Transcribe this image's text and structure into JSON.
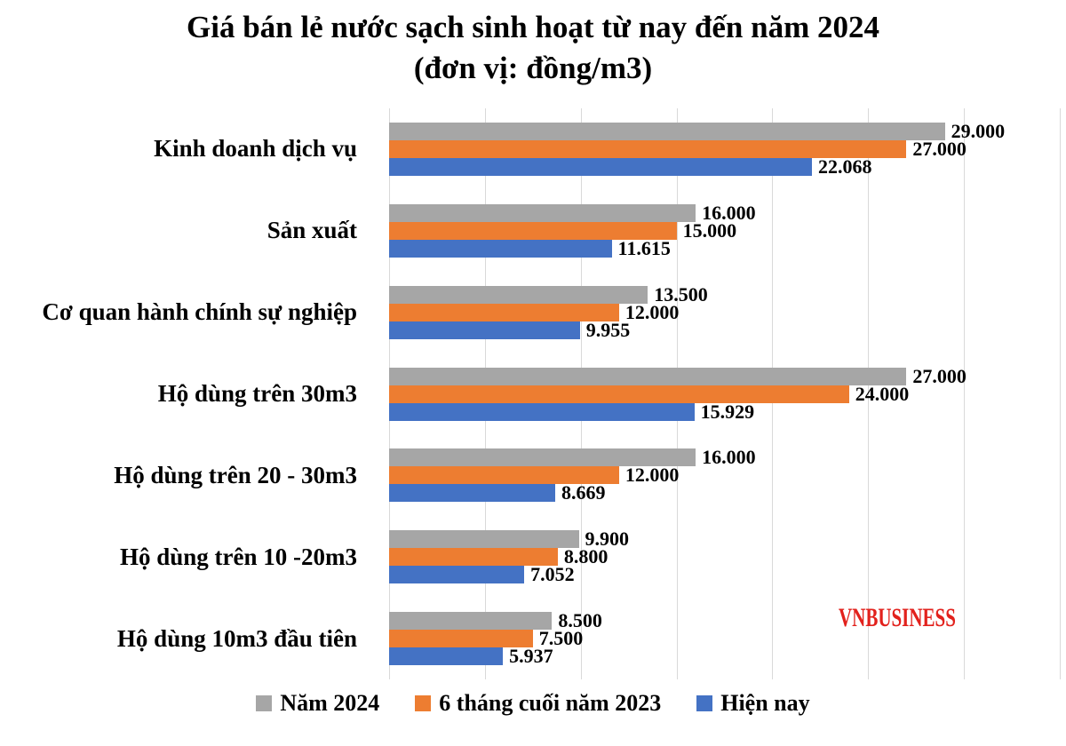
{
  "title": {
    "line1": "Giá bán lẻ nước sạch sinh hoạt từ nay đến năm 2024",
    "line2": "(đơn vị: đồng/m3)"
  },
  "watermark": "VNBUSINESS",
  "colors": {
    "series_nam_2024": "#A6A6A6",
    "series_6_thang_cuoi_2023": "#ED7D31",
    "series_hien_nay": "#4472C4",
    "gridline": "#D9D9D9",
    "value_label": "#000000",
    "watermark": "#E2211C",
    "background": "#FFFFFF"
  },
  "chart_data": {
    "type": "bar",
    "orientation": "horizontal",
    "title": "Giá bán lẻ nước sạch sinh hoạt từ nay đến năm 2024 (đơn vị: đồng/m3)",
    "categories": [
      "Kinh doanh dịch vụ",
      "Sản xuất",
      "Cơ quan hành chính sự nghiệp",
      "Hộ dùng trên 30m3",
      "Hộ dùng trên 20 - 30m3",
      "Hộ dùng trên 10 -20m3",
      "Hộ dùng 10m3 đầu tiên"
    ],
    "series": [
      {
        "name": "Năm 2024",
        "color": "#A6A6A6",
        "values": [
          29000,
          16000,
          13500,
          27000,
          16000,
          9900,
          8500
        ],
        "labels": [
          "29.000",
          "16.000",
          "13.500",
          "27.000",
          "16.000",
          "9.900",
          "8.500"
        ]
      },
      {
        "name": "6 tháng cuối năm 2023",
        "color": "#ED7D31",
        "values": [
          27000,
          15000,
          12000,
          24000,
          12000,
          8800,
          7500
        ],
        "labels": [
          "27.000",
          "15.000",
          "12.000",
          "24.000",
          "12.000",
          "8.800",
          "7.500"
        ]
      },
      {
        "name": "Hiện nay",
        "color": "#4472C4",
        "values": [
          22068,
          11615,
          9955,
          15929,
          8669,
          7052,
          5937
        ],
        "labels": [
          "22.068",
          "11.615",
          "9.955",
          "15.929",
          "8.669",
          "7.052",
          "5.937"
        ]
      }
    ],
    "xlim": [
      0,
      35000
    ],
    "gridline_step": 5000,
    "grid": true,
    "legend_position": "bottom",
    "series_draw_order": "top-to-bottom within each category: Năm 2024, 6 tháng cuối năm 2023, Hiện nay"
  },
  "legend": {
    "items": [
      {
        "label": "Năm 2024",
        "color": "#A6A6A6"
      },
      {
        "label": "6 tháng cuối năm 2023",
        "color": "#ED7D31"
      },
      {
        "label": "Hiện nay",
        "color": "#4472C4"
      }
    ]
  }
}
